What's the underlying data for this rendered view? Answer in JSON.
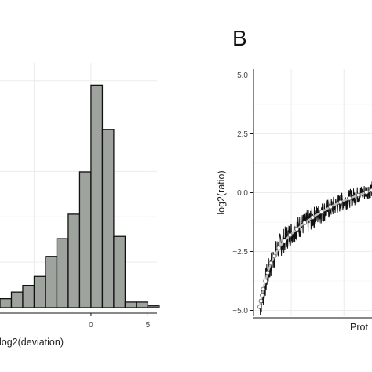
{
  "chart_data": [
    {
      "type": "bar",
      "subtype": "histogram",
      "panel_letter": "",
      "xlabel": "log2(deviation)",
      "ylabel": "",
      "xticks": [
        0,
        5
      ],
      "xlim": [
        -8,
        5.8
      ],
      "ylim": [
        0,
        1.1
      ],
      "grid": true,
      "colors": {
        "bar": "#9ea39e",
        "edge": "#111111"
      },
      "bins": [
        {
          "start": -8,
          "end": -7,
          "value": 0.04
        },
        {
          "start": -7,
          "end": -6,
          "value": 0.07
        },
        {
          "start": -6,
          "end": -5,
          "value": 0.1
        },
        {
          "start": -5,
          "end": -4,
          "value": 0.14
        },
        {
          "start": -4,
          "end": -3,
          "value": 0.23
        },
        {
          "start": -3,
          "end": -2,
          "value": 0.31
        },
        {
          "start": -2,
          "end": -1,
          "value": 0.42
        },
        {
          "start": -1,
          "end": 0,
          "value": 0.61
        },
        {
          "start": 0,
          "end": 1,
          "value": 1.0
        },
        {
          "start": 1,
          "end": 2,
          "value": 0.8
        },
        {
          "start": 2,
          "end": 3,
          "value": 0.32
        },
        {
          "start": 3,
          "end": 4,
          "value": 0.025
        },
        {
          "start": 4,
          "end": 5,
          "value": 0.025
        },
        {
          "start": 5,
          "end": 6,
          "value": 0.008
        }
      ]
    },
    {
      "type": "line",
      "panel_letter": "B",
      "xlabel": "Prot",
      "ylabel": "log2(ratio)",
      "yticks": [
        "5.0",
        "2.5",
        "0.0",
        "−2.5",
        "−5.0"
      ],
      "ytick_values": [
        5.0,
        2.5,
        0.0,
        -2.5,
        -5.0
      ],
      "ylim": [
        -5.25,
        5.25
      ],
      "xlim": [
        0,
        1
      ],
      "grid": true,
      "colors": {
        "noisy": "#111111",
        "smooth": "#bfbfbf",
        "points": "#ffffff"
      },
      "series": [
        {
          "style": "noisy-line",
          "x": [
            0.0,
            0.02,
            0.04,
            0.06,
            0.09,
            0.12,
            0.16,
            0.2,
            0.25,
            0.3,
            0.35,
            0.4,
            0.45,
            0.5,
            0.55,
            0.6,
            0.65,
            0.7,
            0.75,
            0.8,
            0.85,
            0.9,
            0.95,
            1.0
          ],
          "y": [
            -4.8,
            -4.5,
            -4.1,
            -3.6,
            -3.2,
            -2.8,
            -2.4,
            -2.1,
            -1.85,
            -1.6,
            -1.45,
            -1.3,
            -1.15,
            -1.0,
            -0.85,
            -0.72,
            -0.6,
            -0.48,
            -0.36,
            -0.25,
            -0.15,
            -0.05,
            0.05,
            0.15
          ]
        },
        {
          "style": "smooth-points",
          "x": [
            0.0,
            0.01,
            0.02,
            0.03,
            0.05,
            0.07,
            0.1,
            0.13,
            0.17,
            0.22,
            0.27,
            0.33,
            0.4,
            0.47,
            0.55,
            0.63,
            0.72,
            0.8,
            0.88,
            0.95,
            1.0
          ],
          "y": [
            -4.85,
            -4.6,
            -4.35,
            -4.1,
            -3.75,
            -3.4,
            -3.0,
            -2.7,
            -2.35,
            -2.05,
            -1.8,
            -1.55,
            -1.28,
            -1.05,
            -0.82,
            -0.6,
            -0.4,
            -0.24,
            -0.1,
            0.02,
            0.1
          ]
        }
      ]
    }
  ]
}
